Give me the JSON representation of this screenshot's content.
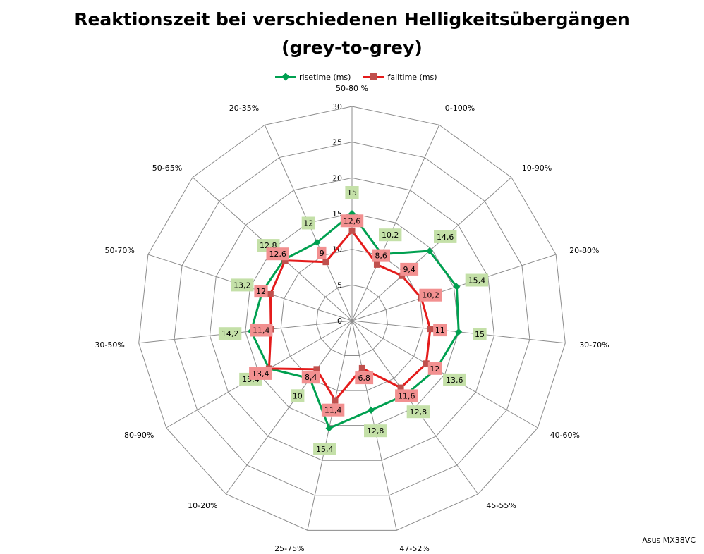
{
  "chart_data": {
    "type": "radar",
    "title_line1": "Reaktionszeit bei verschiedenen Helligkeitsübergängen",
    "title_line2": "(grey-to-grey)",
    "categories": [
      "50-80 %",
      "0-100%",
      "10-90%",
      "20-80%",
      "30-70%",
      "40-60%",
      "45-55%",
      "47-52%",
      "25-75%",
      "10-20%",
      "80-90%",
      "30-50%",
      "50-70%",
      "50-65%",
      "20-35%"
    ],
    "radial_ticks": [
      "0",
      "5",
      "10",
      "15",
      "20",
      "25",
      "30"
    ],
    "rlim": [
      0,
      30
    ],
    "legend_position": "top",
    "grid": true,
    "series": [
      {
        "name": "risetime (ms)",
        "color": "#00A050",
        "label_bg": "#C4E0A8",
        "marker": "diamond",
        "values": [
          15,
          10.2,
          14.6,
          15.4,
          15,
          13.6,
          12.8,
          12.8,
          15.4,
          10,
          13.4,
          14.2,
          13.2,
          12.8,
          12
        ],
        "labels": [
          "15",
          "10,2",
          "14,6",
          "15,4",
          "15",
          "13,6",
          "12,8",
          "12,8",
          "15,4",
          "10",
          "13,4",
          "14,2",
          "13,2",
          "12,8",
          "12"
        ]
      },
      {
        "name": "falltime (ms)",
        "color": "#E41B1B",
        "label_bg": "#F29090",
        "marker": "square",
        "values": [
          12.6,
          8.6,
          9.4,
          10.2,
          11,
          12,
          11.6,
          6.8,
          11.4,
          8.4,
          13.4,
          11.4,
          12,
          12.6,
          9
        ],
        "labels": [
          "12,6",
          "8,6",
          "9,4",
          "10,2",
          "11",
          "12",
          "11,6",
          "6,8",
          "11,4",
          "8,4",
          "13,4",
          "11,4",
          "12",
          "12,6",
          "9"
        ]
      }
    ]
  },
  "credit": "Asus MX38VC"
}
